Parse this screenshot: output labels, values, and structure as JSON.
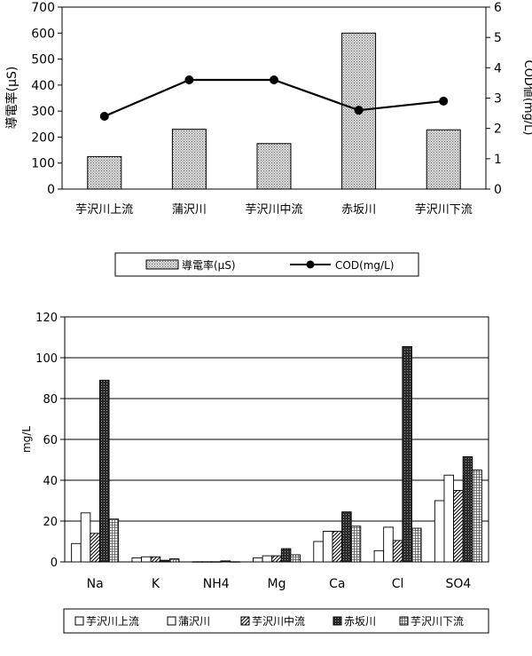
{
  "chart_data": [
    {
      "type": "bar",
      "categories": [
        "芋沢川上流",
        "蒲沢川",
        "芋沢川中流",
        "赤坂川",
        "芋沢川下流"
      ],
      "series": [
        {
          "name": "導電率(μS)",
          "type": "bar",
          "axis": "left",
          "values": [
            125,
            230,
            175,
            600,
            228
          ]
        },
        {
          "name": "COD(mg/L)",
          "type": "line",
          "axis": "right",
          "values": [
            2.4,
            3.6,
            3.6,
            2.6,
            2.9
          ]
        }
      ],
      "ylabel": "導電率(μS)",
      "ylim": [
        0,
        700
      ],
      "yticks": [
        "0",
        "100",
        "200",
        "300",
        "400",
        "500",
        "600",
        "700"
      ],
      "y2label": "COD値(mg/L)",
      "y2lim": [
        0,
        6
      ],
      "y2ticks": [
        "0",
        "1",
        "2",
        "3",
        "4",
        "5",
        "6"
      ],
      "legend_position": "bottom",
      "grid": false
    },
    {
      "type": "bar",
      "categories": [
        "Na",
        "K",
        "NH4",
        "Mg",
        "Ca",
        "Cl",
        "SO4"
      ],
      "series": [
        {
          "name": "芋沢川上流",
          "pattern": "white",
          "values": [
            9,
            2,
            0.1,
            2,
            10,
            5.5,
            30
          ]
        },
        {
          "name": "蒲沢川",
          "pattern": "white",
          "values": [
            24,
            2.5,
            0.1,
            3,
            15,
            17,
            42.5
          ]
        },
        {
          "name": "芋沢川中流",
          "pattern": "diagonal",
          "values": [
            14,
            2.5,
            0.1,
            3,
            15,
            10.5,
            35
          ]
        },
        {
          "name": "赤坂川",
          "pattern": "dark",
          "values": [
            89,
            0.8,
            0.5,
            6.5,
            24.5,
            105.5,
            51.5
          ]
        },
        {
          "name": "芋沢川下流",
          "pattern": "grid",
          "values": [
            21,
            1.5,
            0.1,
            3.5,
            17.5,
            16.5,
            45
          ]
        }
      ],
      "ylabel": "mg/L",
      "ylim": [
        0,
        120
      ],
      "yticks": [
        "0",
        "20",
        "40",
        "60",
        "80",
        "100",
        "120"
      ],
      "legend_position": "bottom",
      "grid": true
    }
  ]
}
